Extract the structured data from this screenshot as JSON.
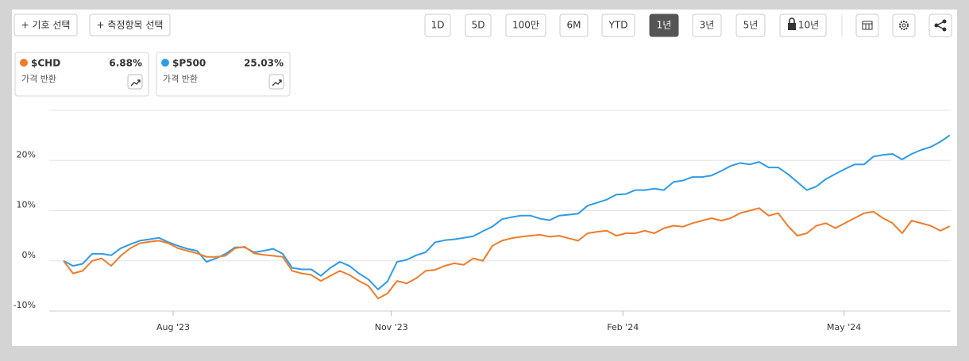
{
  "toolbar": {
    "left_buttons": [
      "+ 기호 선택",
      "+ 측정항목 선택"
    ],
    "ranges": [
      "1D",
      "5D",
      "100만",
      "6M",
      "YTD",
      "1년",
      "3년",
      "5년",
      "10년"
    ],
    "selected": "1년"
  },
  "cards": [
    {
      "change": "6.88%",
      "caption": "가격 반환"
    },
    {
      "change": "25.03%",
      "caption": "가격 반환"
    }
  ],
  "chart_data": {
    "type": "line",
    "ylim": [
      -10,
      30
    ],
    "yticks": [
      {
        "value": -10,
        "label": "-10%"
      },
      {
        "value": 0,
        "label": "0%"
      },
      {
        "value": 10,
        "label": "10%"
      },
      {
        "value": 20,
        "label": "20%"
      }
    ],
    "xlim": [
      -1.5,
      93.1
    ],
    "xticks": [
      {
        "value": 11.5,
        "label": "Aug '23"
      },
      {
        "value": 34.4,
        "label": "Nov '23"
      },
      {
        "value": 58.7,
        "label": "Feb '24"
      },
      {
        "value": 81.9,
        "label": "May '24"
      }
    ],
    "grid": true,
    "series": [
      {
        "name": "$CHD",
        "color": "#f07c2a",
        "values": [
          0,
          -2.5,
          -2,
          0,
          0.5,
          -1,
          1,
          2.5,
          3.5,
          3.8,
          4,
          3.5,
          2.5,
          2,
          1.5,
          0.8,
          0.8,
          1,
          2.5,
          2.8,
          1.5,
          1.2,
          1,
          0.8,
          -2,
          -2.5,
          -2.8,
          -4,
          -3,
          -2,
          -2.8,
          -4,
          -5,
          -7.5,
          -6.5,
          -4,
          -4.5,
          -3.5,
          -2,
          -1.8,
          -1,
          -0.5,
          -0.8,
          0.5,
          0,
          3,
          4,
          4.5,
          4.8,
          5,
          5.2,
          4.8,
          5,
          4.5,
          4,
          5.5,
          5.8,
          6,
          5,
          5.5,
          5.5,
          6,
          5.5,
          6.5,
          7,
          6.8,
          7.5,
          8,
          8.5,
          8,
          8.5,
          9.5,
          10,
          10.5,
          9,
          9.5,
          7,
          5,
          5.5,
          7,
          7.5,
          6.5,
          7.5,
          8.5,
          9.5,
          9.8,
          8.5,
          7.5,
          5.5,
          8,
          7.5,
          7,
          6,
          6.88
        ]
      },
      {
        "name": "$P500",
        "color": "#2f9be8",
        "values": [
          0,
          -1,
          -0.6,
          1.4,
          1.4,
          1.1,
          2.5,
          3.3,
          4,
          4.3,
          4.6,
          3.7,
          3,
          2.4,
          2,
          -0.2,
          0.5,
          1.4,
          2.7,
          2.7,
          1.7,
          2,
          2.4,
          1.4,
          -1.4,
          -1.7,
          -1.7,
          -3,
          -1.4,
          -0.2,
          -1,
          -2.5,
          -3.7,
          -5.7,
          -4.1,
          -0.2,
          0.2,
          1.1,
          1.7,
          3.7,
          4.1,
          4.3,
          4.6,
          4.9,
          5.9,
          6.8,
          8.3,
          8.7,
          9,
          9,
          8.4,
          8.1,
          9,
          9.2,
          9.4,
          11,
          11.6,
          12.2,
          13.2,
          13.3,
          14.1,
          14.1,
          14.4,
          14.1,
          15.7,
          16,
          16.7,
          16.7,
          17,
          17.9,
          18.9,
          19.5,
          19.2,
          19.7,
          18.6,
          18.6,
          17.3,
          15.7,
          14.1,
          14.8,
          16.3,
          17.3,
          18.3,
          19.2,
          19.2,
          20.8,
          21.1,
          21.3,
          20.2,
          21.3,
          22.1,
          22.7,
          23.7,
          25.03
        ]
      }
    ]
  }
}
